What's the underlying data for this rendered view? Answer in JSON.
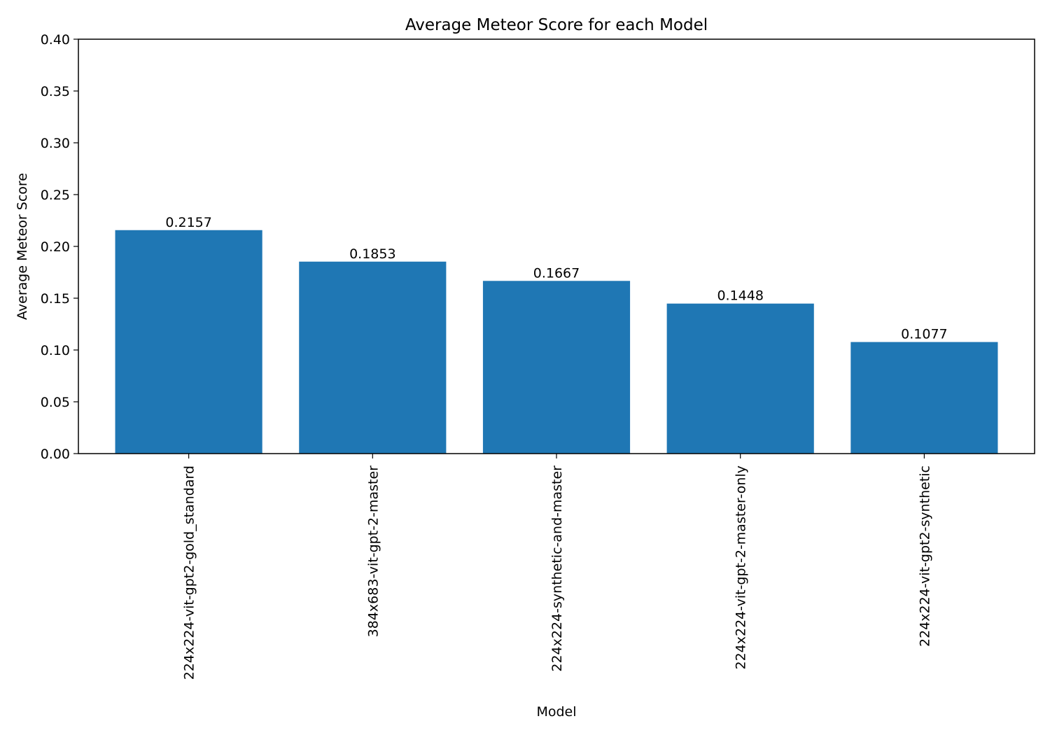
{
  "chart_data": {
    "type": "bar",
    "title": "Average Meteor Score for each Model",
    "xlabel": "Model",
    "ylabel": "Average Meteor Score",
    "categories": [
      "224x224-vit-gpt2-gold_standard",
      "384x683-vit-gpt-2-master",
      "224x224-synthetic-and-master",
      "224x224-vit-gpt-2-master-only",
      "224x224-vit-gpt2-synthetic"
    ],
    "values": [
      0.2157,
      0.1853,
      0.1667,
      0.1448,
      0.1077
    ],
    "data_labels": [
      "0.2157",
      "0.1853",
      "0.1667",
      "0.1448",
      "0.1077"
    ],
    "ylim": [
      0,
      0.4
    ],
    "yticks": [
      0.0,
      0.05,
      0.1,
      0.15,
      0.2,
      0.25,
      0.3,
      0.35,
      0.4
    ],
    "ytick_labels": [
      "0.00",
      "0.05",
      "0.10",
      "0.15",
      "0.20",
      "0.25",
      "0.30",
      "0.35",
      "0.40"
    ],
    "grid": false,
    "legend": "none",
    "bar_color": "#1f77b4"
  }
}
